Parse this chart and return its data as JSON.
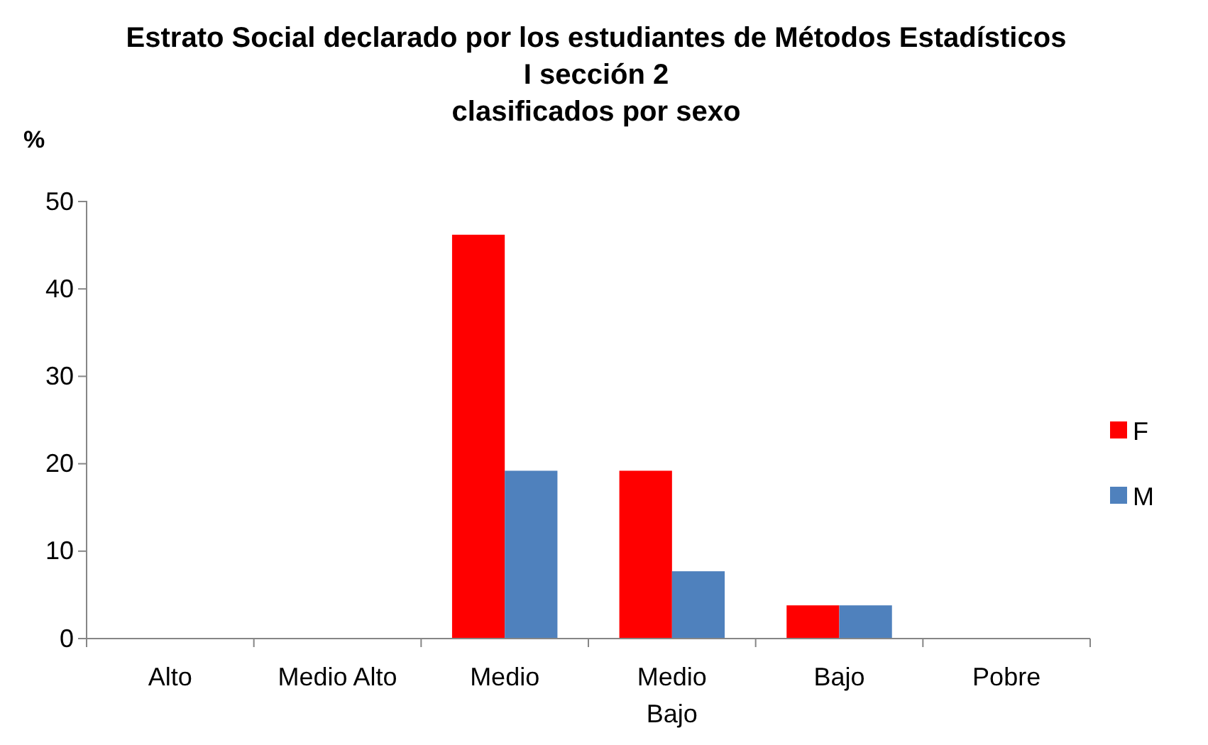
{
  "chart_data": {
    "type": "bar",
    "title": "Estrato Social declarado por los estudiantes de Métodos Estadísticos I sección 2\nclasificados por sexo",
    "ylabel": "%",
    "categories": [
      "Alto",
      "Medio Alto",
      "Medio",
      "Medio Bajo",
      "Bajo",
      "Pobre"
    ],
    "series": [
      {
        "name": "F",
        "color": "#ff0000",
        "values": [
          0,
          0,
          46.2,
          19.2,
          3.8,
          0
        ]
      },
      {
        "name": "M",
        "color": "#4f81bd",
        "values": [
          0,
          0,
          19.2,
          7.7,
          3.8,
          0
        ]
      }
    ],
    "ylim": [
      0,
      50
    ],
    "yticks": [
      0,
      10,
      20,
      30,
      40,
      50
    ],
    "grid": false,
    "legend": "right"
  }
}
